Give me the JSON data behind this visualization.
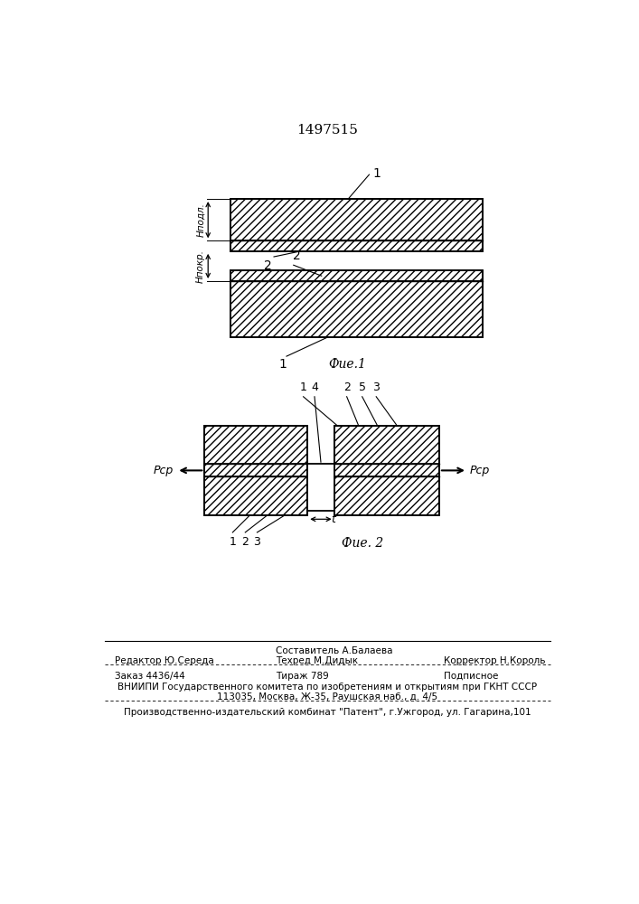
{
  "title": "1497515",
  "fig1_label": "Фие.1",
  "fig2_label": "Фие. 2",
  "label_hpodl": "Hподл.",
  "label_hpokr": "Hпокр.",
  "label_psr": "Pср",
  "label_t": "t",
  "footer_sostavitel": "Составитель А.Балаева",
  "footer_redaktor": "Редактор Ю.Середа",
  "footer_tehred": "Техред М.Дидык",
  "footer_korrektor": "Корректор Н.Король",
  "footer_zakaz": "Заказ 4436/44",
  "footer_tirazh": "Тираж 789",
  "footer_podpisnoe": "Подписное",
  "footer_vniiipi": "ВНИИПИ Государственного комитета по изобретениям и открытиям при ГКНТ СССР",
  "footer_addr": "113035, Москва, Ж-35, Раушская наб., д. 4/5",
  "footer_patent": "Производственно-издательский комбинат \"Патент\", г.Ужгород, ул. Гагарина,101"
}
